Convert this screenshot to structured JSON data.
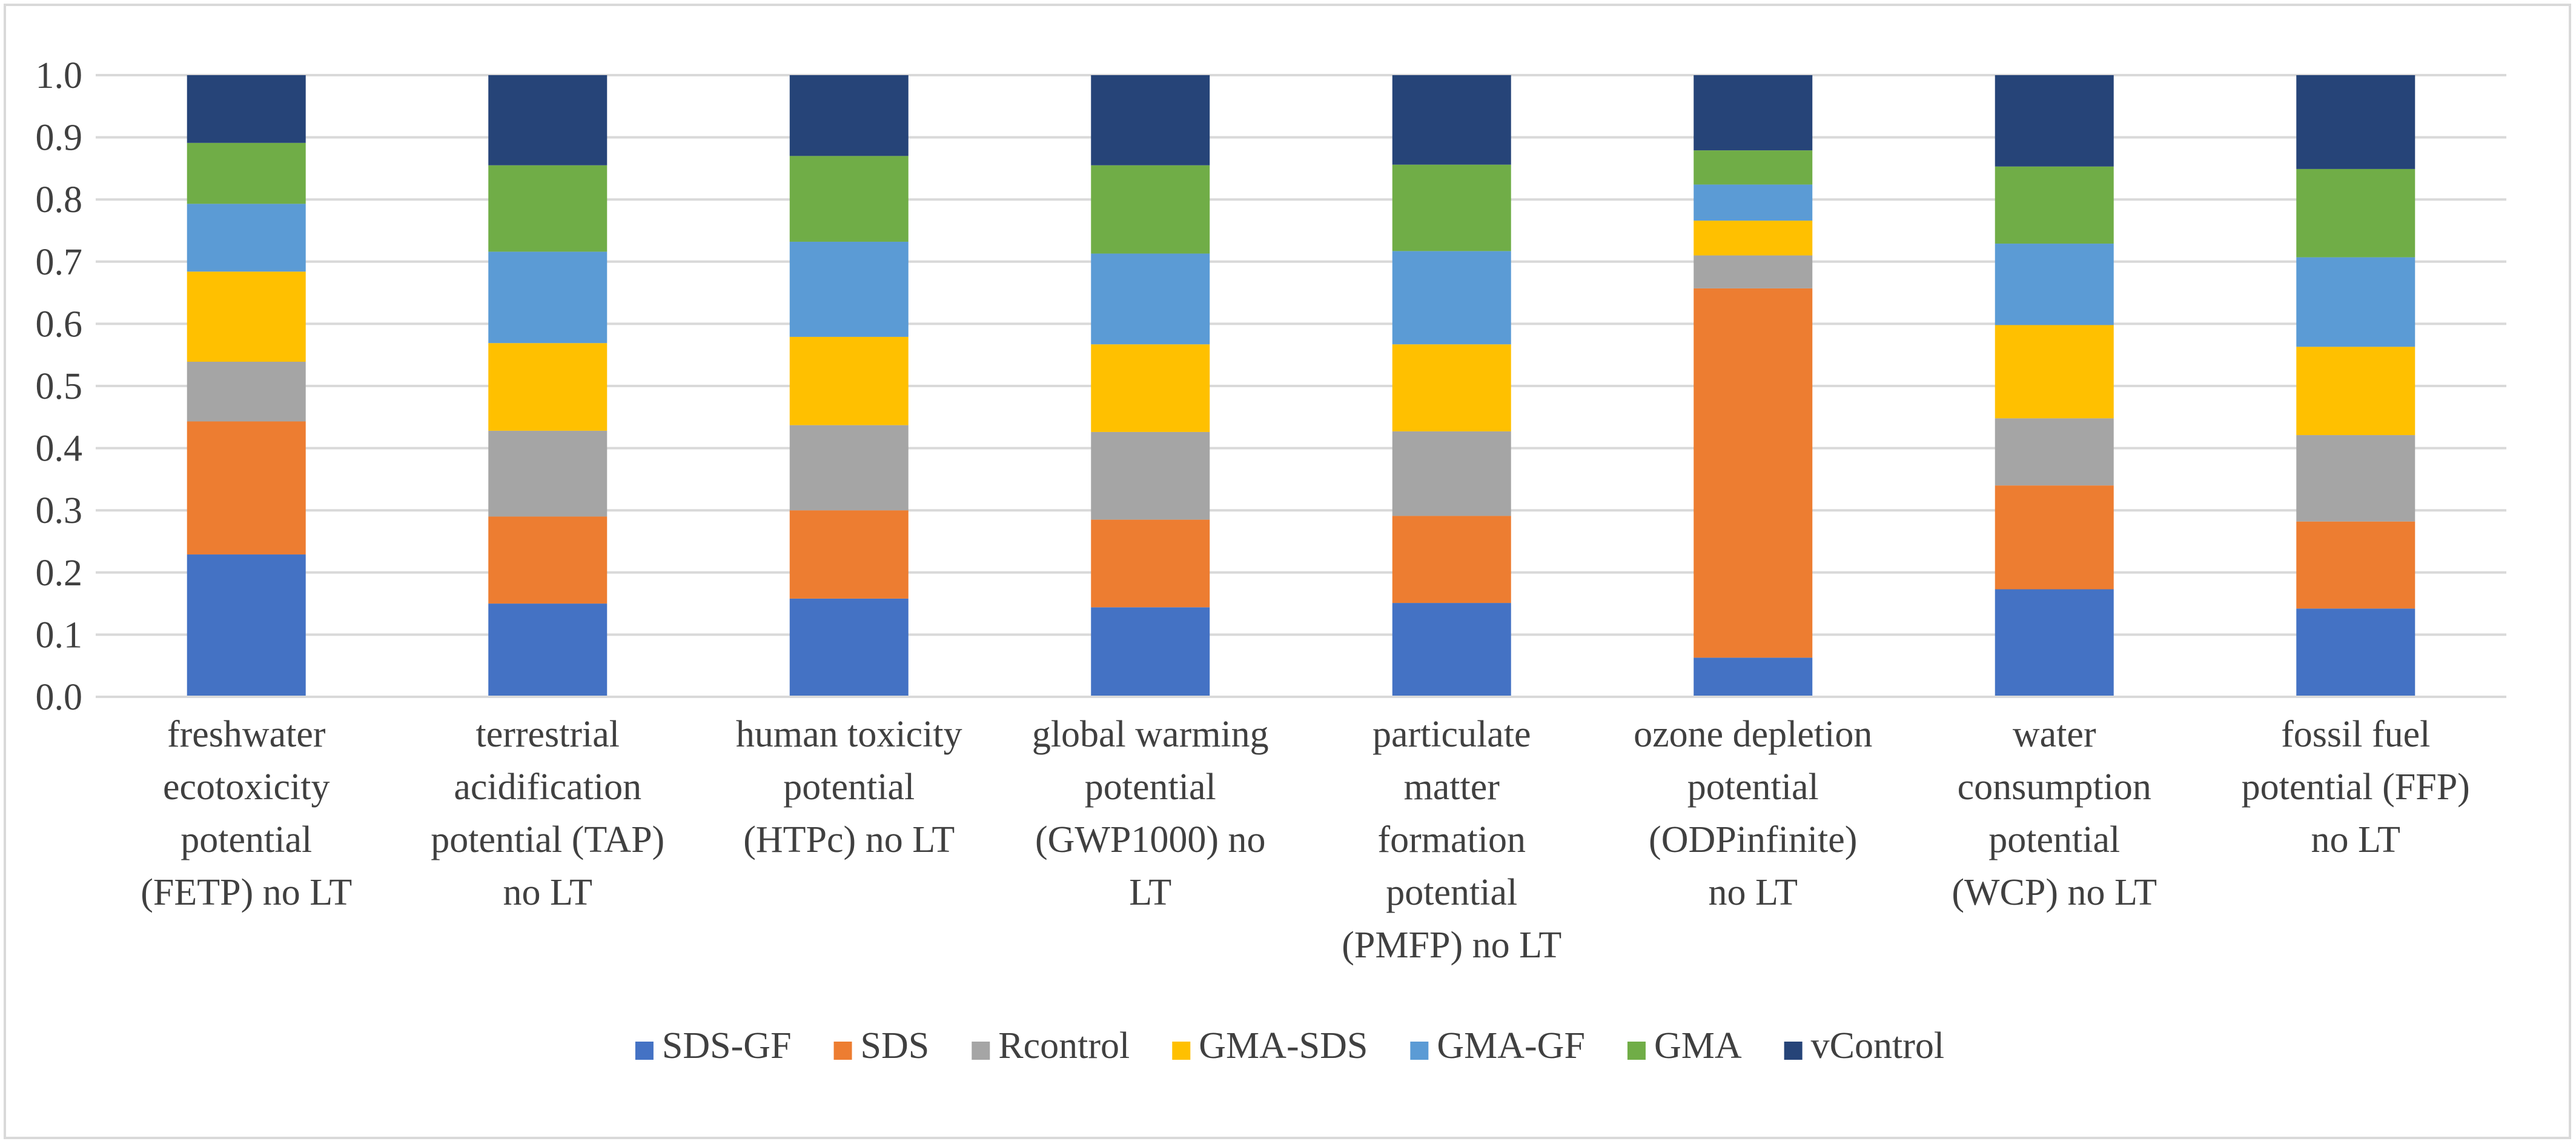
{
  "chart_data": {
    "type": "bar",
    "stacked": true,
    "title": "",
    "xlabel": "",
    "ylabel": "",
    "ylim": [
      0,
      1.0
    ],
    "yticks": [
      "0.0",
      "0.1",
      "0.2",
      "0.3",
      "0.4",
      "0.5",
      "0.6",
      "0.7",
      "0.8",
      "0.9",
      "1.0"
    ],
    "grid": true,
    "legend_position": "bottom",
    "categories": [
      [
        "freshwater",
        "ecotoxicity",
        "potential",
        "(FETP) no LT"
      ],
      [
        "terrestrial",
        "acidification",
        "potential (TAP)",
        "no LT"
      ],
      [
        "human toxicity",
        "potential",
        "(HTPc) no LT"
      ],
      [
        "global warming",
        "potential",
        "(GWP1000) no",
        "LT"
      ],
      [
        "particulate",
        "matter",
        "formation",
        "potential",
        "(PMFP) no LT"
      ],
      [
        "ozone depletion",
        "potential",
        "(ODPinfinite)",
        "no LT"
      ],
      [
        "water",
        "consumption",
        "potential",
        "(WCP) no LT"
      ],
      [
        "fossil fuel",
        "potential (FFP)",
        "no LT"
      ]
    ],
    "series": [
      {
        "name": "SDS-GF",
        "color": "#4472c4",
        "values": [
          0.229,
          0.15,
          0.158,
          0.144,
          0.151,
          0.063,
          0.173,
          0.142
        ]
      },
      {
        "name": "SDS",
        "color": "#ed7d31",
        "values": [
          0.214,
          0.14,
          0.142,
          0.141,
          0.14,
          0.594,
          0.167,
          0.14
        ]
      },
      {
        "name": "Rcontrol",
        "color": "#a5a5a5",
        "values": [
          0.096,
          0.138,
          0.137,
          0.141,
          0.136,
          0.053,
          0.108,
          0.139
        ]
      },
      {
        "name": "GMA-SDS",
        "color": "#ffc000",
        "values": [
          0.145,
          0.141,
          0.142,
          0.141,
          0.14,
          0.056,
          0.15,
          0.142
        ]
      },
      {
        "name": "GMA-GF",
        "color": "#5b9bd5",
        "values": [
          0.109,
          0.147,
          0.153,
          0.146,
          0.15,
          0.058,
          0.131,
          0.144
        ]
      },
      {
        "name": "GMA",
        "color": "#70ad47",
        "values": [
          0.098,
          0.139,
          0.138,
          0.142,
          0.139,
          0.055,
          0.124,
          0.142
        ]
      },
      {
        "name": "vControl",
        "color": "#264478",
        "values": [
          0.109,
          0.145,
          0.13,
          0.145,
          0.144,
          0.121,
          0.147,
          0.151
        ]
      }
    ]
  }
}
